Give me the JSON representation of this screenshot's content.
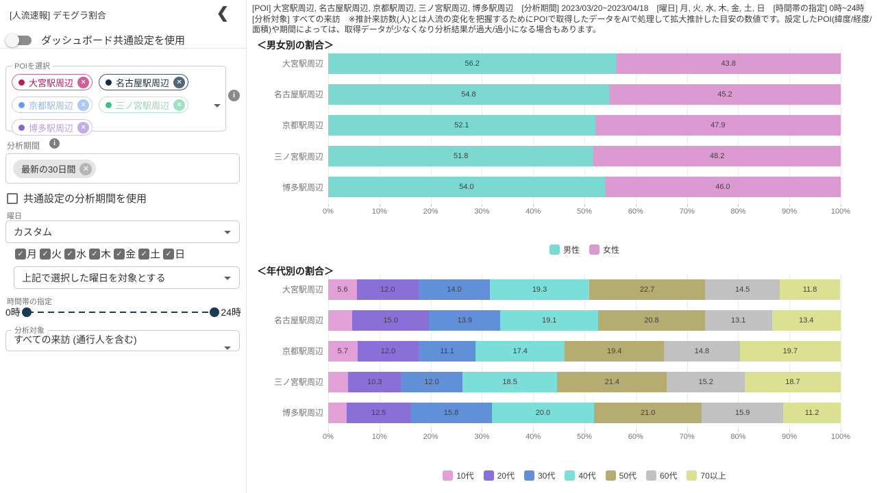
{
  "sidebar": {
    "title": "[人流速報] デモグラ割合",
    "collapse_icon": "❮",
    "toggle_label": "ダッシュボード共通設定を使用",
    "poi": {
      "legend": "POIを選択",
      "chips": [
        {
          "label": "大宮駅周辺",
          "dot": "#c2185b",
          "text": "#c2185b",
          "border": "#cc6698",
          "x_bg": "#ce5f98"
        },
        {
          "label": "名古屋駅周辺",
          "dot": "#16293c",
          "text": "#16293c",
          "border": "#3f5367",
          "x_bg": "#526778"
        },
        {
          "label": "京都駅周辺",
          "dot": "#6a9bf4",
          "text": "#92b5f6",
          "border": "#bcd1fa",
          "x_bg": "#abc7f8"
        },
        {
          "label": "三ノ宮駅周辺",
          "dot": "#3fbf87",
          "text": "#8edcb7",
          "border": "#b3e7cd",
          "x_bg": "#9ce1c0"
        },
        {
          "label": "博多駅周辺",
          "dot": "#8a63cf",
          "text": "#b79fdf",
          "border": "#d2c2ec",
          "x_bg": "#c3ace6"
        }
      ]
    },
    "period": {
      "label": "分析期間",
      "chip": "最新の30日間"
    },
    "common_period_label": "共通設定の分析期間を使用",
    "weekday": {
      "label": "曜日",
      "select_value": "カスタム",
      "days": [
        "月",
        "火",
        "水",
        "木",
        "金",
        "土",
        "日"
      ],
      "mode_select_value": "上記で選択した曜日を対象とする"
    },
    "time": {
      "label": "時間帯の指定",
      "start": "0時",
      "end": "24時"
    },
    "target": {
      "legend": "分析対象",
      "value": "すべての来訪 (通行人を含む)"
    }
  },
  "main": {
    "note": "[POI] 大宮駅周辺, 名古屋駅周辺, 京都駅周辺, 三ノ宮駅周辺, 博多駅周辺　[分析期間] 2023/03/20~2023/04/18　[曜日] 月, 火, 水, 木, 金, 土, 日　[時間帯の指定] 0時~24時　[分析対象] すべての来訪　※推計来訪数(人)とは人流の変化を把握するためにPOIで取得したデータをAIで処理して拡大推計した目安の数値です。設定したPOI(緯度/経度/面積)や期間によっては、取得データが少なくなり分析結果が過大/過小になる場合もあります。"
  },
  "chart_data": [
    {
      "type": "bar",
      "orientation": "horizontal-stacked",
      "title": "＜男女別の割合＞",
      "categories": [
        "大宮駅周辺",
        "名古屋駅周辺",
        "京都駅周辺",
        "三ノ宮駅周辺",
        "博多駅周辺"
      ],
      "series": [
        {
          "name": "男性",
          "color": "#7cd9d2",
          "values": [
            56.2,
            54.8,
            52.1,
            51.8,
            54.0
          ]
        },
        {
          "name": "女性",
          "color": "#db9bd2",
          "values": [
            43.8,
            45.2,
            47.9,
            48.2,
            46.0
          ]
        }
      ],
      "xlim": [
        0,
        100
      ],
      "tick_step_percent": 10,
      "grid": true,
      "legend_position": "bottom",
      "label_min_percent": 5
    },
    {
      "type": "bar",
      "orientation": "horizontal-stacked",
      "title": "＜年代別の割合＞",
      "categories": [
        "大宮駅周辺",
        "名古屋駅周辺",
        "京都駅周辺",
        "三ノ宮駅周辺",
        "博多駅周辺"
      ],
      "series": [
        {
          "name": "10代",
          "color": "#e1a0d6",
          "values": [
            5.6,
            4.7,
            5.7,
            3.9,
            3.6
          ]
        },
        {
          "name": "20代",
          "color": "#8a6fd8",
          "values": [
            12.0,
            15.0,
            12.0,
            10.3,
            12.5
          ]
        },
        {
          "name": "30代",
          "color": "#6190d8",
          "values": [
            14.0,
            13.9,
            11.1,
            12.0,
            15.8
          ]
        },
        {
          "name": "40代",
          "color": "#7cded8",
          "values": [
            19.3,
            19.1,
            17.4,
            18.5,
            20.0
          ]
        },
        {
          "name": "50代",
          "color": "#b4ac71",
          "values": [
            22.7,
            20.8,
            19.4,
            21.4,
            21.0
          ]
        },
        {
          "name": "60代",
          "color": "#c1c1c1",
          "values": [
            14.5,
            13.1,
            14.8,
            15.2,
            15.9
          ]
        },
        {
          "name": "70以上",
          "color": "#dce092",
          "values": [
            11.8,
            13.4,
            19.7,
            18.7,
            11.2
          ]
        }
      ],
      "xlim": [
        0,
        100
      ],
      "tick_step_percent": 10,
      "grid": true,
      "legend_position": "bottom",
      "label_min_percent": 5
    }
  ]
}
